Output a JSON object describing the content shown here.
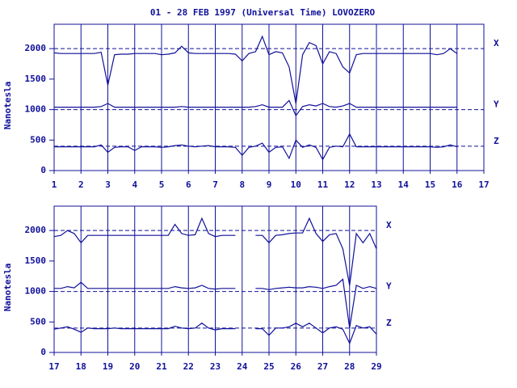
{
  "chart_data": [
    {
      "type": "line",
      "title": "01 - 28 FEB 1997 (Universal Time) LOVOZERO",
      "ylabel": "Nanotesla",
      "x": [
        1,
        1.25,
        1.5,
        1.75,
        2,
        2.25,
        2.5,
        2.75,
        3,
        3.25,
        3.5,
        3.75,
        4,
        4.25,
        4.5,
        4.75,
        5,
        5.25,
        5.5,
        5.75,
        6,
        6.25,
        6.5,
        6.75,
        7,
        7.25,
        7.5,
        7.75,
        8,
        8.25,
        8.5,
        8.75,
        9,
        9.25,
        9.5,
        9.75,
        10,
        10.25,
        10.5,
        10.75,
        11,
        11.25,
        11.5,
        11.75,
        12,
        12.25,
        12.5,
        12.75,
        13,
        13.25,
        13.5,
        13.75,
        14,
        14.25,
        14.5,
        14.75,
        15,
        15.25,
        15.5,
        15.75,
        16
      ],
      "series": [
        {
          "name": "X",
          "color": "#10109a",
          "values": [
            1930,
            1920,
            1920,
            1920,
            1920,
            1920,
            1920,
            1940,
            1400,
            1900,
            1910,
            1910,
            1920,
            1920,
            1920,
            1920,
            1900,
            1910,
            1930,
            2040,
            1930,
            1920,
            1920,
            1920,
            1920,
            1920,
            1920,
            1910,
            1800,
            1920,
            1950,
            2200,
            1900,
            1950,
            1930,
            1700,
            1100,
            1900,
            2100,
            2050,
            1750,
            1950,
            1920,
            1700,
            1600,
            1900,
            1920,
            1920,
            1920,
            1920,
            1920,
            1920,
            1920,
            1920,
            1920,
            1920,
            1920,
            1900,
            1920,
            2000,
            1920
          ]
        },
        {
          "name": "Y",
          "color": "#10109a",
          "values": [
            1040,
            1040,
            1040,
            1040,
            1040,
            1040,
            1040,
            1050,
            1100,
            1040,
            1040,
            1040,
            1040,
            1040,
            1040,
            1040,
            1040,
            1040,
            1040,
            1050,
            1040,
            1040,
            1040,
            1040,
            1040,
            1040,
            1040,
            1040,
            1040,
            1040,
            1050,
            1080,
            1040,
            1040,
            1040,
            1150,
            900,
            1050,
            1080,
            1060,
            1100,
            1050,
            1040,
            1060,
            1100,
            1040,
            1040,
            1040,
            1040,
            1040,
            1040,
            1040,
            1040,
            1040,
            1040,
            1040,
            1040,
            1040,
            1040,
            1040,
            1040
          ]
        },
        {
          "name": "Z",
          "color": "#10109a",
          "values": [
            390,
            390,
            390,
            390,
            390,
            390,
            390,
            420,
            300,
            380,
            390,
            390,
            330,
            390,
            390,
            390,
            380,
            390,
            410,
            420,
            400,
            390,
            400,
            410,
            390,
            390,
            390,
            380,
            250,
            380,
            400,
            450,
            300,
            380,
            390,
            200,
            500,
            380,
            420,
            380,
            180,
            380,
            400,
            390,
            600,
            390,
            390,
            390,
            390,
            390,
            390,
            390,
            390,
            390,
            390,
            390,
            390,
            380,
            390,
            420,
            390
          ]
        }
      ],
      "reference_lines": [
        2000,
        1000,
        400
      ],
      "xlim": [
        1,
        17
      ],
      "ylim": [
        0,
        2400
      ],
      "xticks": [
        1,
        2,
        3,
        4,
        5,
        6,
        7,
        8,
        9,
        10,
        11,
        12,
        13,
        14,
        15,
        16,
        17
      ],
      "yticks": [
        0,
        500,
        1000,
        1500,
        2000
      ],
      "grid": true
    },
    {
      "type": "line",
      "ylabel": "Nanotesla",
      "x": [
        17,
        17.25,
        17.5,
        17.75,
        18,
        18.25,
        18.5,
        18.75,
        19,
        19.25,
        19.5,
        19.75,
        20,
        20.25,
        20.5,
        20.75,
        21,
        21.25,
        21.5,
        21.75,
        22,
        22.25,
        22.5,
        22.75,
        23,
        23.25,
        23.5,
        23.75,
        24,
        24.25,
        24.5,
        24.75,
        25,
        25.25,
        25.5,
        25.75,
        26,
        26.25,
        26.5,
        26.75,
        27,
        27.25,
        27.5,
        27.75,
        28,
        28.25,
        28.5,
        28.75,
        29
      ],
      "series": [
        {
          "name": "X",
          "color": "#10109a",
          "values": [
            1900,
            1920,
            2000,
            1950,
            1800,
            1920,
            1920,
            1920,
            1920,
            1920,
            1920,
            1920,
            1920,
            1920,
            1920,
            1920,
            1920,
            1920,
            2100,
            1950,
            1920,
            1930,
            2200,
            1950,
            1900,
            1920,
            1920,
            1920,
            null,
            null,
            1920,
            1920,
            1800,
            1920,
            1930,
            1950,
            1960,
            1960,
            2200,
            1950,
            1820,
            1930,
            1950,
            1700,
            1100,
            1950,
            1800,
            1950,
            1700
          ]
        },
        {
          "name": "Y",
          "color": "#10109a",
          "values": [
            1050,
            1050,
            1080,
            1060,
            1150,
            1050,
            1050,
            1050,
            1050,
            1050,
            1050,
            1050,
            1050,
            1050,
            1050,
            1050,
            1050,
            1050,
            1080,
            1060,
            1050,
            1060,
            1100,
            1050,
            1040,
            1050,
            1050,
            1050,
            null,
            null,
            1050,
            1050,
            1030,
            1050,
            1060,
            1070,
            1060,
            1060,
            1080,
            1070,
            1050,
            1080,
            1100,
            1200,
            400,
            1100,
            1050,
            1080,
            1050
          ]
        },
        {
          "name": "Z",
          "color": "#10109a",
          "values": [
            380,
            400,
            420,
            380,
            330,
            400,
            390,
            390,
            390,
            400,
            390,
            390,
            390,
            390,
            390,
            390,
            390,
            390,
            430,
            400,
            390,
            400,
            480,
            400,
            370,
            390,
            390,
            390,
            null,
            null,
            390,
            390,
            280,
            400,
            400,
            420,
            480,
            420,
            480,
            400,
            320,
            400,
            420,
            380,
            150,
            440,
            400,
            420,
            300
          ]
        }
      ],
      "reference_lines": [
        2000,
        1000,
        400
      ],
      "xlim": [
        17,
        29
      ],
      "ylim": [
        0,
        2400
      ],
      "xticks": [
        17,
        18,
        19,
        20,
        21,
        22,
        23,
        24,
        25,
        26,
        27,
        28,
        29
      ],
      "yticks": [
        0,
        500,
        1000,
        1500,
        2000
      ],
      "grid": true
    }
  ]
}
